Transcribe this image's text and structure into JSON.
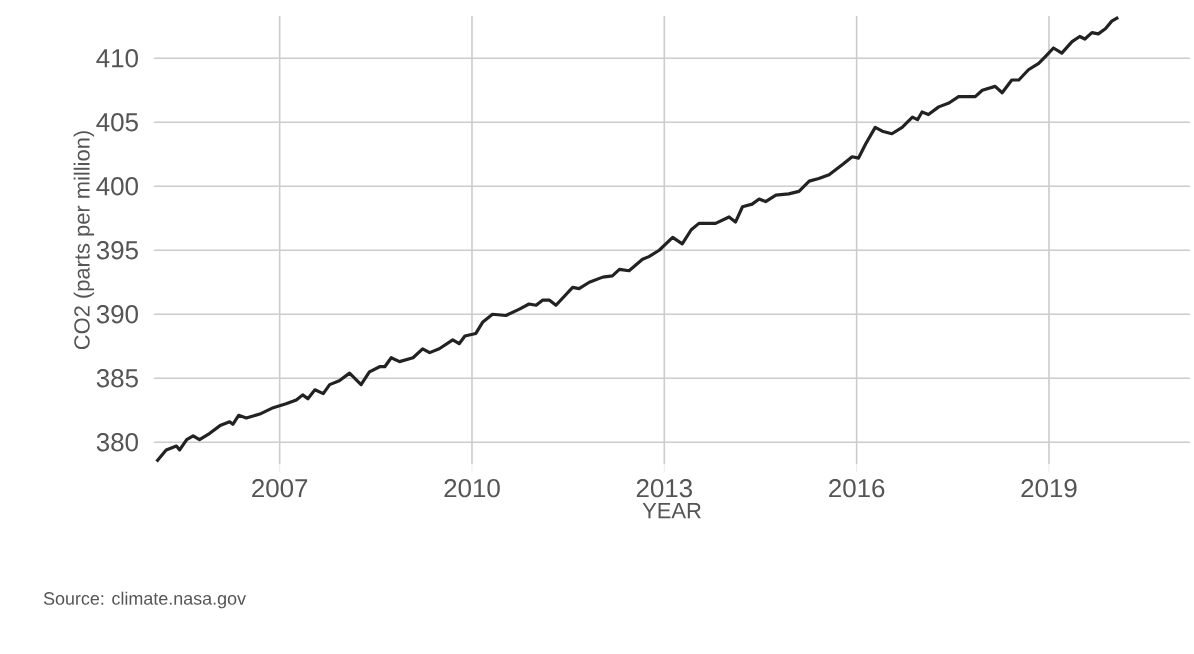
{
  "chart_data": {
    "type": "line",
    "xlabel": "YEAR",
    "ylabel": "CO2 (parts per million)",
    "annotations": [
      "Source: climate.nasa.gov"
    ],
    "xlim": [
      2005.04,
      2021.2
    ],
    "ylim": [
      378.3,
      413.3
    ],
    "xticks": [
      2007,
      2010,
      2013,
      2016,
      2019
    ],
    "yticks": [
      380,
      385,
      390,
      395,
      400,
      405,
      410
    ],
    "grid": true,
    "line_style": "solid",
    "series": [
      {
        "color": "#222222",
        "x": [
          2005.08,
          2005.23,
          2005.39,
          2005.44,
          2005.55,
          2005.65,
          2005.75,
          2005.91,
          2006.07,
          2006.22,
          2006.27,
          2006.36,
          2006.48,
          2006.69,
          2006.9,
          2007.1,
          2007.26,
          2007.36,
          2007.44,
          2007.55,
          2007.68,
          2007.78,
          2007.93,
          2008.09,
          2008.27,
          2008.4,
          2008.56,
          2008.64,
          2008.74,
          2008.87,
          2009.08,
          2009.23,
          2009.34,
          2009.49,
          2009.7,
          2009.8,
          2009.89,
          2010.06,
          2010.17,
          2010.32,
          2010.53,
          2010.74,
          2010.89,
          2011.0,
          2011.1,
          2011.21,
          2011.31,
          2011.57,
          2011.67,
          2011.83,
          2012.04,
          2012.19,
          2012.3,
          2012.45,
          2012.66,
          2012.76,
          2012.92,
          2013.13,
          2013.28,
          2013.42,
          2013.54,
          2013.8,
          2014.01,
          2014.11,
          2014.22,
          2014.37,
          2014.48,
          2014.58,
          2014.74,
          2014.94,
          2015.1,
          2015.26,
          2015.41,
          2015.57,
          2015.78,
          2015.93,
          2016.03,
          2016.14,
          2016.29,
          2016.4,
          2016.55,
          2016.71,
          2016.87,
          2016.95,
          2017.02,
          2017.12,
          2017.28,
          2017.44,
          2017.59,
          2017.85,
          2017.96,
          2018.16,
          2018.27,
          2018.42,
          2018.53,
          2018.68,
          2018.84,
          2018.94,
          2019.07,
          2019.2,
          2019.36,
          2019.48,
          2019.56,
          2019.67,
          2019.77,
          2019.88,
          2019.98,
          2020.08
        ],
        "values": [
          378.5,
          379.4,
          379.7,
          379.4,
          380.2,
          380.5,
          380.2,
          380.7,
          381.3,
          381.6,
          381.4,
          382.1,
          381.9,
          382.2,
          382.7,
          383.0,
          383.3,
          383.7,
          383.4,
          384.1,
          383.8,
          384.5,
          384.8,
          385.4,
          384.5,
          385.5,
          385.9,
          385.9,
          386.6,
          386.3,
          386.6,
          387.3,
          387.0,
          387.3,
          388.0,
          387.7,
          388.3,
          388.5,
          389.4,
          390.0,
          389.9,
          390.4,
          390.8,
          390.7,
          391.1,
          391.1,
          390.7,
          392.1,
          392.0,
          392.5,
          392.9,
          393.0,
          393.5,
          393.4,
          394.3,
          394.5,
          395.0,
          396.0,
          395.5,
          396.6,
          397.1,
          397.1,
          397.6,
          397.2,
          398.4,
          398.6,
          399.0,
          398.8,
          399.3,
          399.4,
          399.6,
          400.4,
          400.6,
          400.9,
          401.7,
          402.3,
          402.2,
          403.3,
          404.6,
          404.3,
          404.1,
          404.6,
          405.4,
          405.2,
          405.8,
          405.6,
          406.2,
          406.5,
          407.0,
          407.0,
          407.5,
          407.8,
          407.3,
          408.3,
          408.3,
          409.1,
          409.6,
          410.1,
          410.8,
          410.4,
          411.3,
          411.7,
          411.5,
          412.0,
          411.9,
          412.3,
          412.9,
          413.2
        ]
      }
    ]
  }
}
